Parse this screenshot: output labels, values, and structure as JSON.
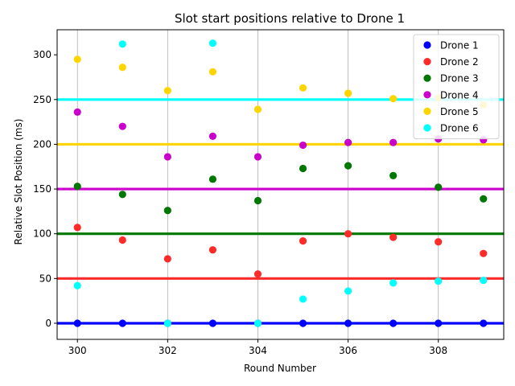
{
  "chart_data": {
    "type": "scatter",
    "title": "Slot start positions relative to Drone 1",
    "xlabel": "Round Number",
    "ylabel": "Relative Slot Position (ms)",
    "xlim": [
      299.55,
      309.45
    ],
    "ylim": [
      -18,
      328
    ],
    "xticks": [
      300,
      302,
      304,
      306,
      308
    ],
    "yticks": [
      0,
      50,
      100,
      150,
      200,
      250,
      300
    ],
    "grid": "x-only",
    "legend_position": "top-right",
    "x": [
      300,
      301,
      302,
      303,
      304,
      305,
      306,
      307,
      308,
      309
    ],
    "series": [
      {
        "name": "Drone 1",
        "color": "#0000ff",
        "reference": 0,
        "values": [
          0,
          0,
          0,
          0,
          0,
          0,
          0,
          0,
          0,
          0
        ]
      },
      {
        "name": "Drone 2",
        "color": "#ff2a2a",
        "reference": 50,
        "values": [
          107,
          93,
          72,
          82,
          55,
          92,
          100,
          96,
          91,
          78
        ]
      },
      {
        "name": "Drone 3",
        "color": "#007700",
        "reference": 100,
        "values": [
          153,
          144,
          126,
          161,
          137,
          173,
          176,
          165,
          152,
          139
        ]
      },
      {
        "name": "Drone 4",
        "color": "#cc00cc",
        "reference": 150,
        "values": [
          236,
          220,
          186,
          209,
          186,
          199,
          202,
          202,
          206,
          205
        ]
      },
      {
        "name": "Drone 5",
        "color": "#ffd500",
        "reference": 200,
        "values": [
          295,
          286,
          260,
          281,
          239,
          263,
          257,
          251,
          252,
          244
        ]
      },
      {
        "name": "Drone 6",
        "color": "#00ffff",
        "reference": 250,
        "values": [
          42,
          312,
          0,
          313,
          0,
          27,
          36,
          45,
          47,
          48
        ]
      }
    ]
  }
}
